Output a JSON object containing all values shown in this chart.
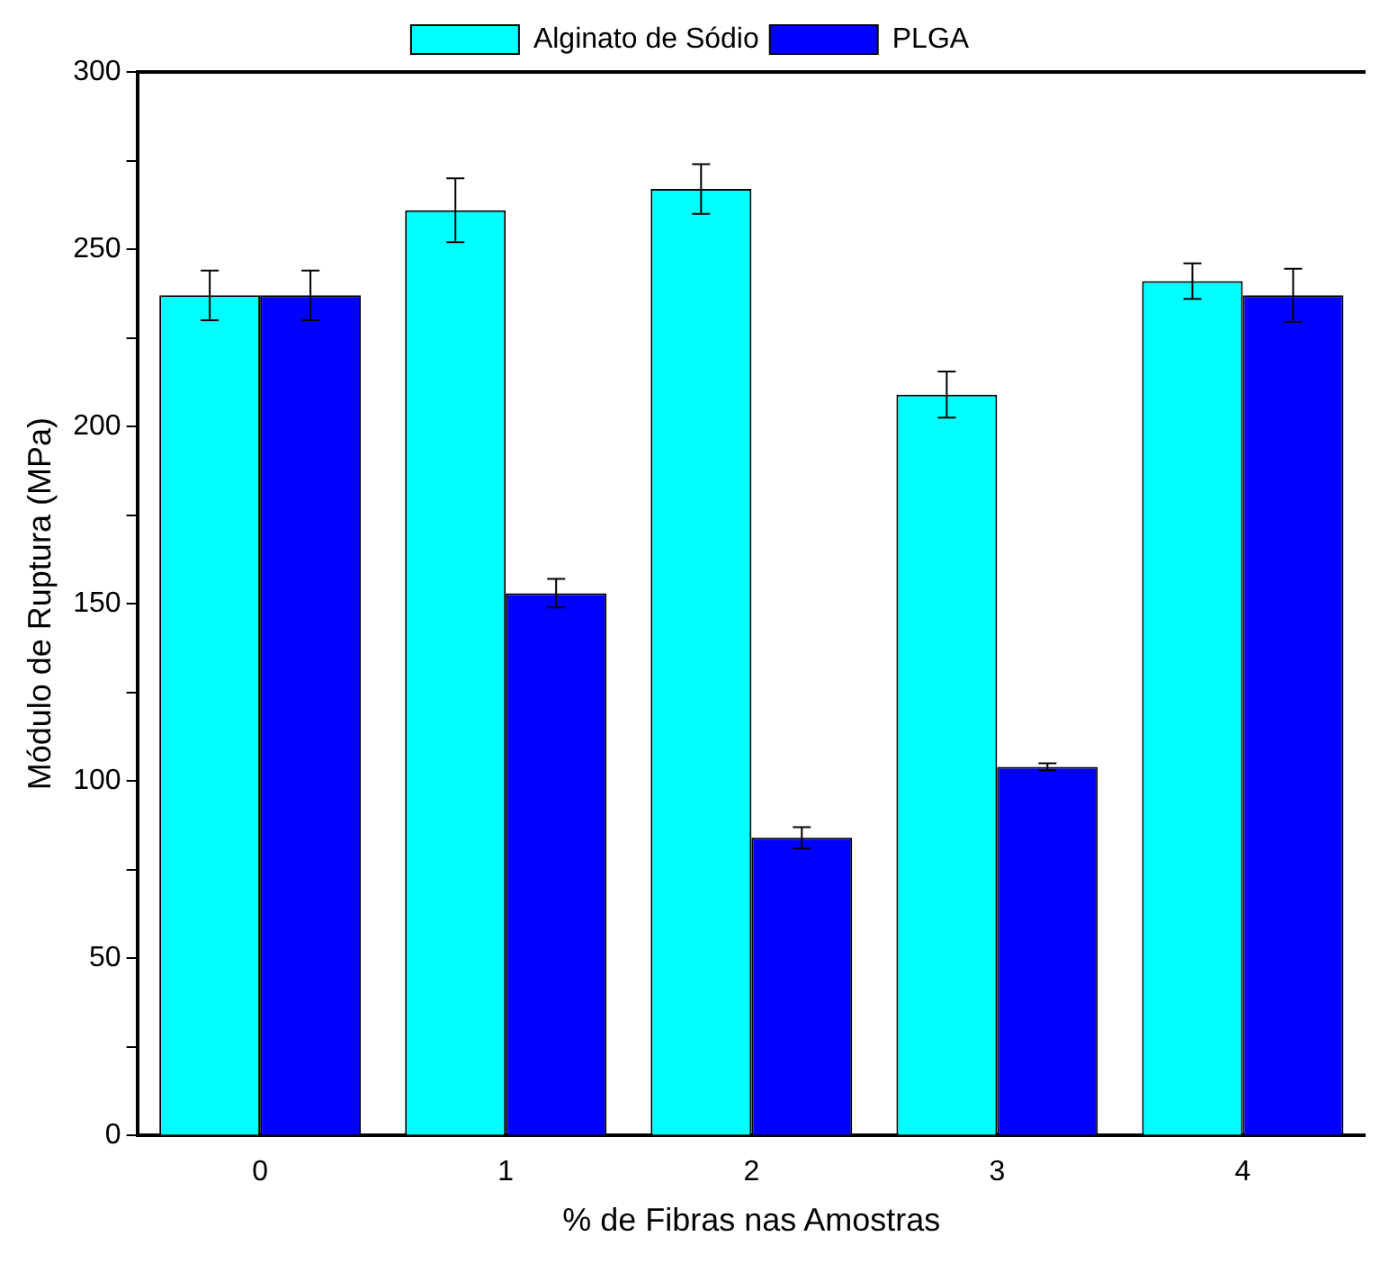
{
  "chart_data": {
    "type": "bar",
    "xlabel": "% de Fibras nas Amostras",
    "ylabel": "Módulo de Ruptura (MPa)",
    "categories": [
      "0",
      "1",
      "2",
      "3",
      "4"
    ],
    "series": [
      {
        "name": "Alginato de Sódio",
        "color": "#00ffff",
        "values": [
          237,
          261,
          267,
          209,
          241
        ],
        "errors": [
          7,
          9,
          7,
          6.5,
          5
        ]
      },
      {
        "name": "PLGA",
        "color": "#0000ff",
        "values": [
          237,
          153,
          84,
          104,
          237
        ],
        "errors": [
          7,
          4,
          3,
          1,
          7.5
        ]
      }
    ],
    "ylim": [
      0,
      300
    ],
    "yticks": [
      0,
      {
        "value": 25,
        "label": null
      },
      50,
      {
        "value": 75,
        "label": null
      },
      100,
      {
        "value": 125,
        "label": null
      },
      150,
      {
        "value": 175,
        "label": null
      },
      200,
      {
        "value": 225,
        "label": null
      },
      250,
      {
        "value": 275,
        "label": null
      },
      300
    ],
    "grid": false,
    "legend": "top"
  }
}
